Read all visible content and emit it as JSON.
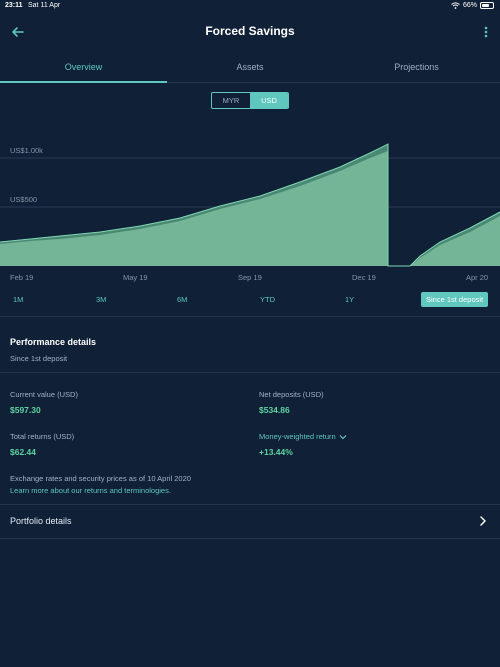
{
  "status_bar": {
    "time": "23:11",
    "date": "Sat 11 Apr",
    "battery": "66%"
  },
  "header": {
    "title": "Forced Savings"
  },
  "tabs": [
    {
      "label": "Overview",
      "active": true
    },
    {
      "label": "Assets",
      "active": false
    },
    {
      "label": "Projections",
      "active": false
    }
  ],
  "currency": {
    "options": [
      "MYR",
      "USD"
    ],
    "selected": "USD"
  },
  "chart": {
    "y_ticks": [
      "US$1.00k",
      "US$500"
    ],
    "x_ticks": [
      "Feb 19",
      "May 19",
      "Sep 19",
      "Dec 19",
      "Apr 20"
    ]
  },
  "ranges": [
    "1M",
    "3M",
    "6M",
    "YTD",
    "1Y",
    "Since 1st deposit"
  ],
  "selected_range": "Since 1st deposit",
  "performance": {
    "title": "Performance details",
    "subtitle": "Since 1st deposit",
    "current_value_label": "Current value (USD)",
    "current_value": "$597.30",
    "net_deposits_label": "Net deposits (USD)",
    "net_deposits": "$534.86",
    "total_returns_label": "Total returns (USD)",
    "total_returns": "$62.44",
    "mwr_label": "Money-weighted return",
    "mwr_value": "+13.44%",
    "note": "Exchange rates and security prices as of 10 April 2020",
    "learn_more": "Learn more about our returns and terminologies."
  },
  "portfolio_details": {
    "label": "Portfolio details"
  },
  "colors": {
    "background": "#0f2037",
    "accent": "#5fc7bd",
    "positive": "#5fd3a0",
    "chart_fill": "#6aae90"
  }
}
